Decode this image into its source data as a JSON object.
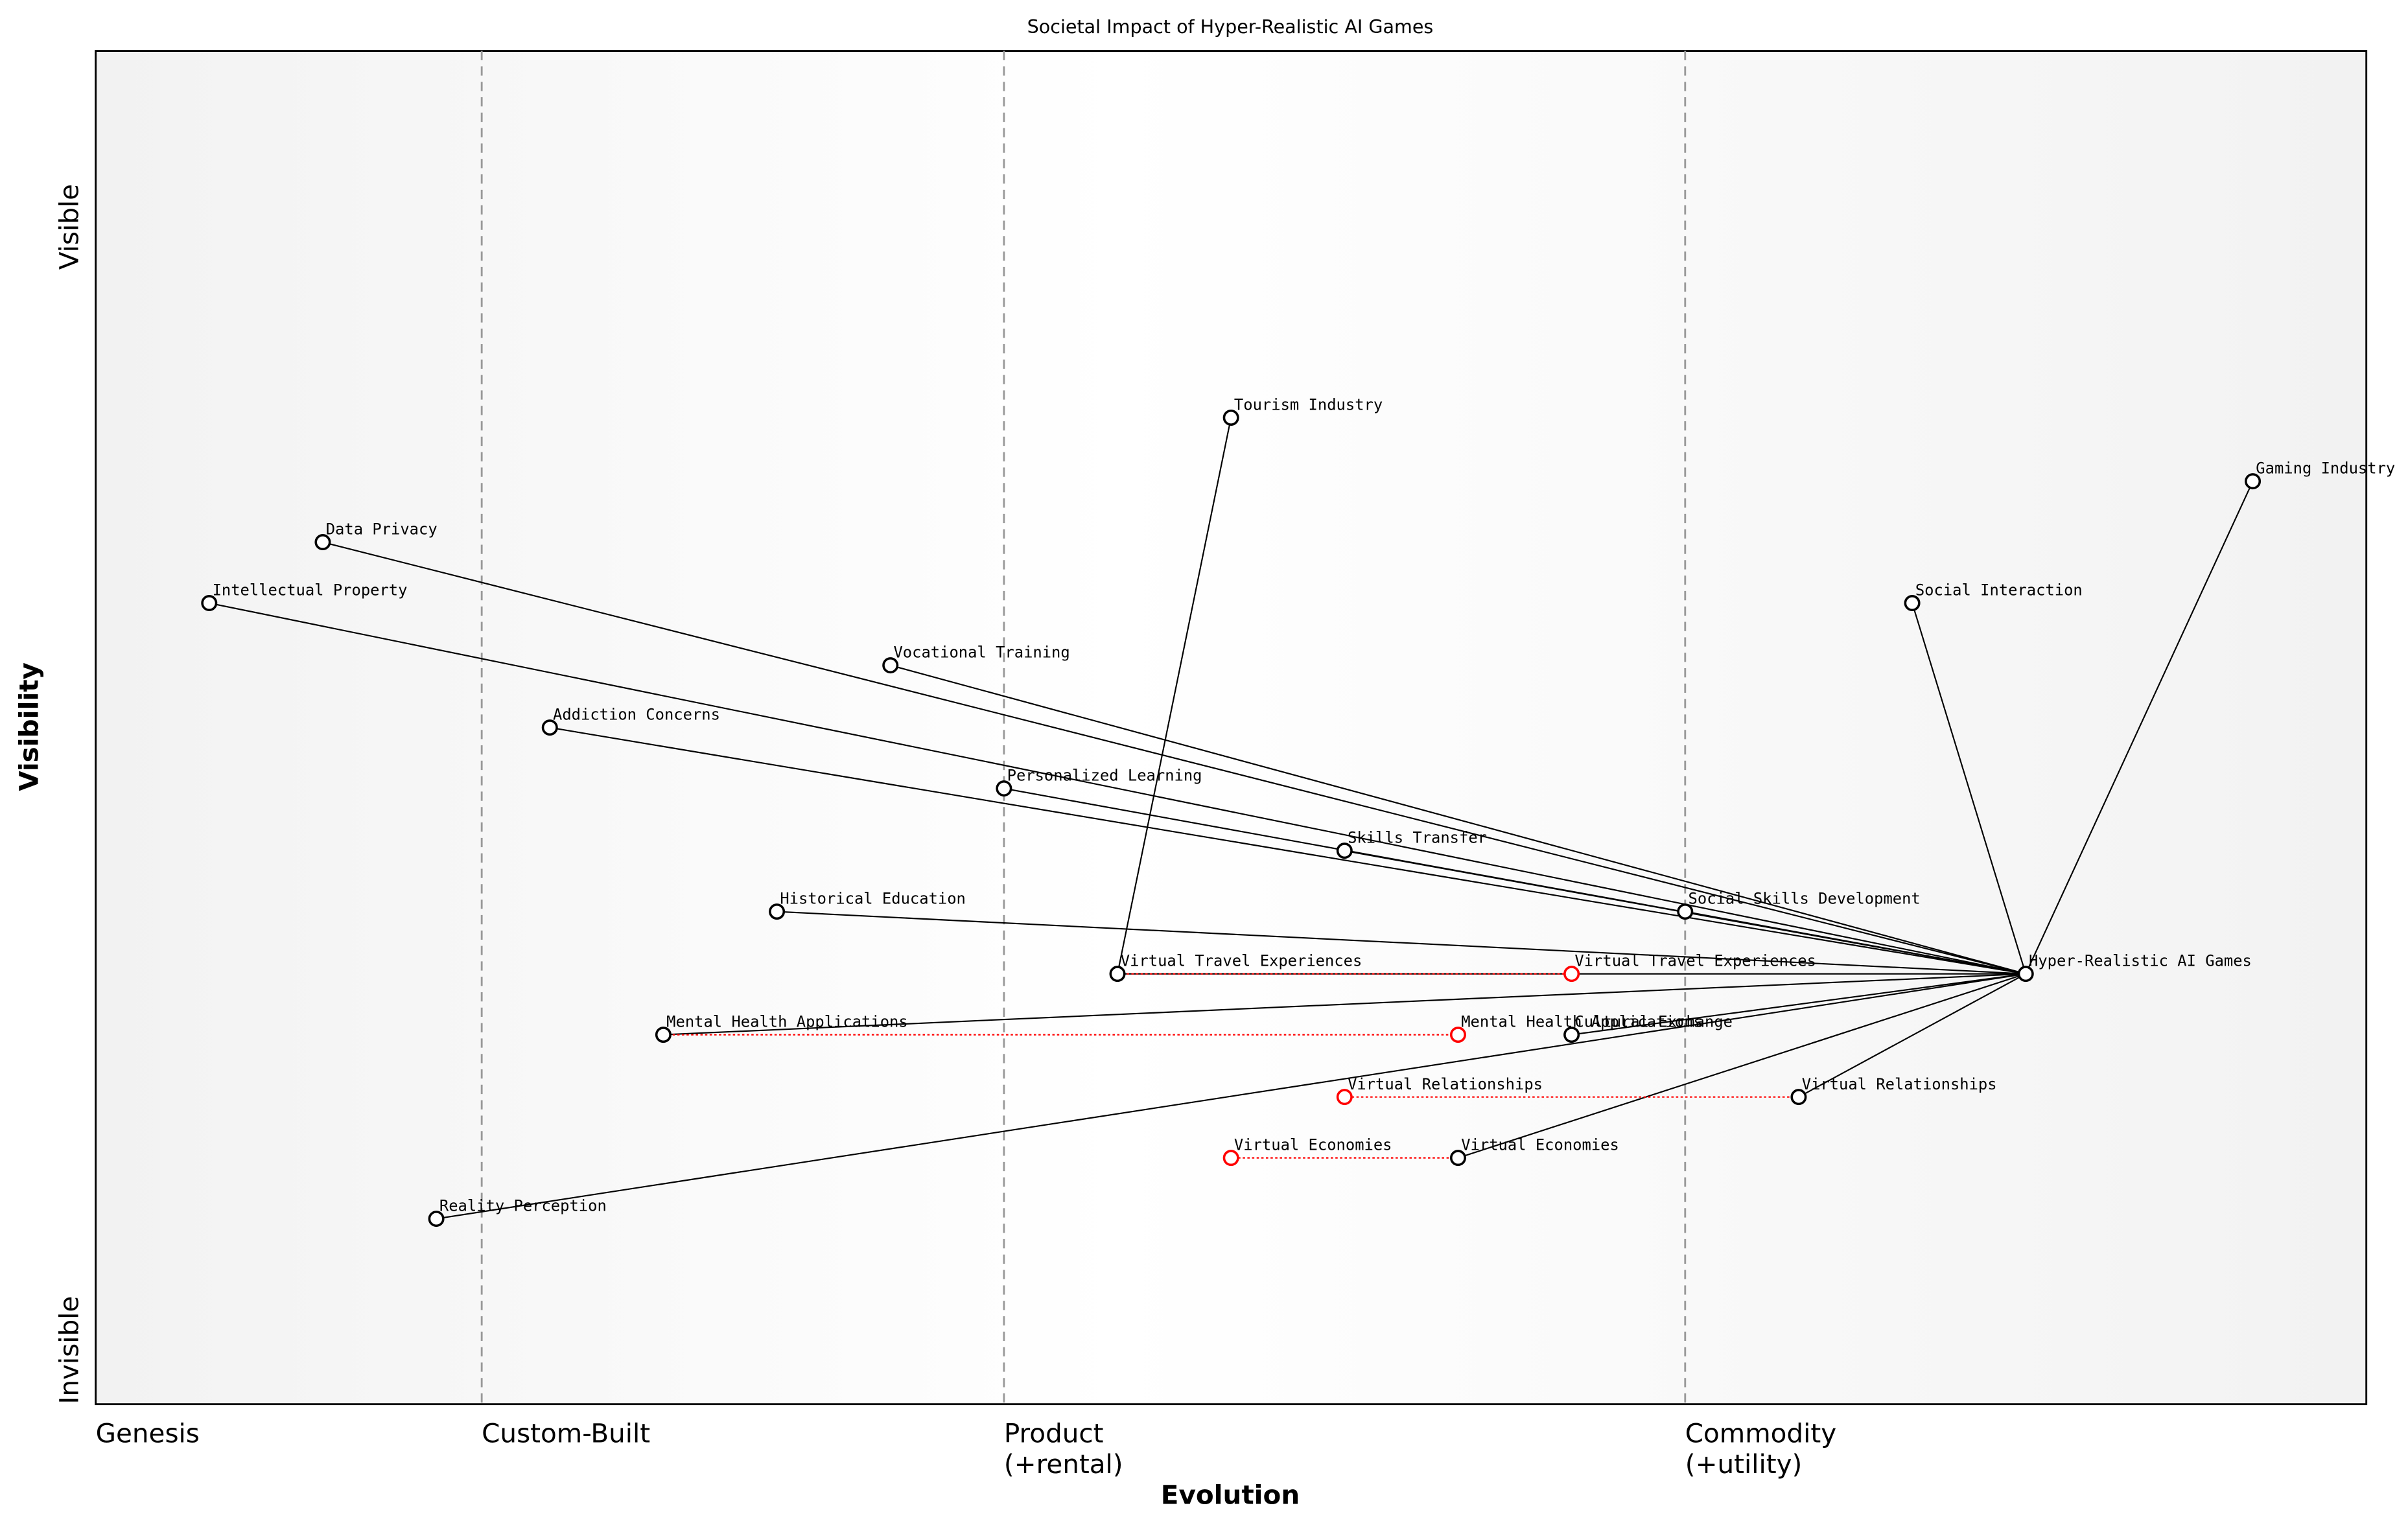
{
  "chart_data": {
    "type": "wardley",
    "title": "Societal Impact of Hyper-Realistic AI Games",
    "xlabel": "Evolution",
    "ylabel": "Visibility",
    "xlim": [
      0,
      1
    ],
    "ylim": [
      0,
      1
    ],
    "xticks": [
      {
        "value": 0,
        "label": [
          "Genesis"
        ]
      },
      {
        "value": 0.17,
        "label": [
          "Custom-Built"
        ]
      },
      {
        "value": 0.4,
        "label": [
          "Product",
          "(+rental)"
        ]
      },
      {
        "value": 0.7,
        "label": [
          "Commodity",
          "(+utility)"
        ]
      }
    ],
    "yticks": [
      {
        "value": 0.04,
        "label": "Invisible"
      },
      {
        "value": 0.87,
        "label": "Visible"
      }
    ],
    "grid": true,
    "components": [
      {
        "name": "Hyper-Realistic AI Games",
        "x": 0.85,
        "y": 0.318
      },
      {
        "name": "Gaming Industry",
        "x": 0.95,
        "y": 0.682
      },
      {
        "name": "Social Interaction",
        "x": 0.8,
        "y": 0.592
      },
      {
        "name": "Tourism Industry",
        "x": 0.5,
        "y": 0.729
      },
      {
        "name": "Data Privacy",
        "x": 0.1,
        "y": 0.637
      },
      {
        "name": "Intellectual Property",
        "x": 0.05,
        "y": 0.592
      },
      {
        "name": "Vocational Training",
        "x": 0.35,
        "y": 0.546
      },
      {
        "name": "Addiction Concerns",
        "x": 0.2,
        "y": 0.5
      },
      {
        "name": "Personalized Learning",
        "x": 0.4,
        "y": 0.455
      },
      {
        "name": "Skills Transfer",
        "x": 0.55,
        "y": 0.409
      },
      {
        "name": "Social Skills Development",
        "x": 0.7,
        "y": 0.364
      },
      {
        "name": "Historical Education",
        "x": 0.3,
        "y": 0.364
      },
      {
        "name": "Virtual Travel Experiences",
        "x": 0.45,
        "y": 0.318,
        "evolve": 0.65
      },
      {
        "name": "Cultural Exchange",
        "x": 0.65,
        "y": 0.273
      },
      {
        "name": "Mental Health Applications",
        "x": 0.25,
        "y": 0.273,
        "evolve": 0.6
      },
      {
        "name": "Virtual Relationships",
        "x": 0.75,
        "y": 0.227,
        "evolve": 0.55
      },
      {
        "name": "Virtual Economies",
        "x": 0.6,
        "y": 0.182,
        "evolve": 0.5
      },
      {
        "name": "Reality Perception",
        "x": 0.15,
        "y": 0.137
      }
    ],
    "links": [
      [
        0,
        1
      ],
      [
        0,
        2
      ],
      [
        12,
        3
      ],
      [
        0,
        4
      ],
      [
        0,
        5
      ],
      [
        0,
        6
      ],
      [
        0,
        7
      ],
      [
        0,
        8
      ],
      [
        0,
        9
      ],
      [
        0,
        10
      ],
      [
        0,
        11
      ],
      [
        0,
        12
      ],
      [
        0,
        13
      ],
      [
        0,
        14
      ],
      [
        0,
        15
      ],
      [
        0,
        16
      ],
      [
        0,
        17
      ]
    ]
  }
}
